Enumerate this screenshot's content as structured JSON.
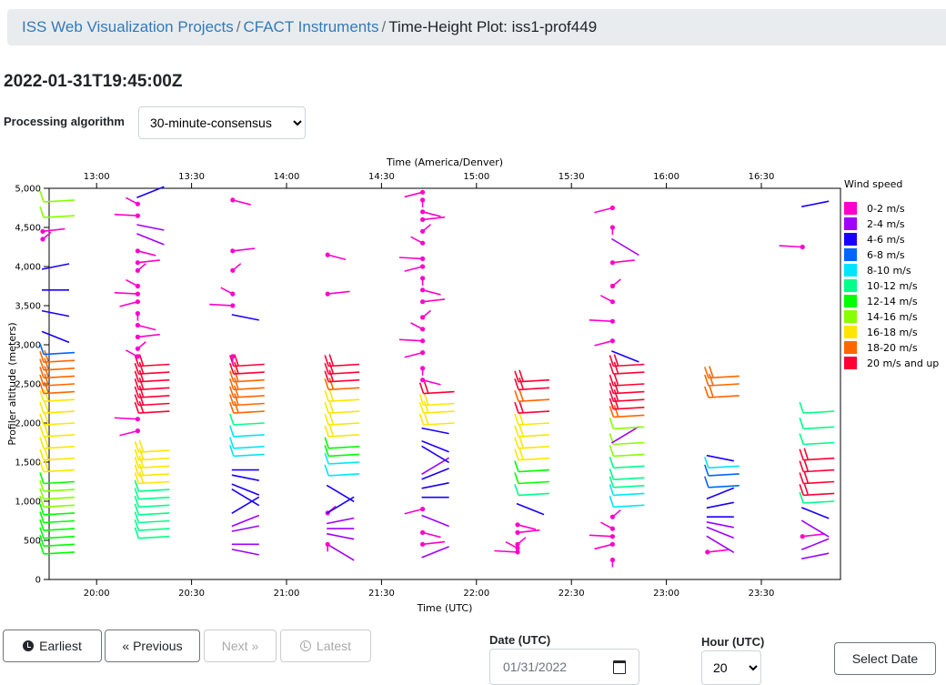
{
  "breadcrumb": {
    "items": [
      "ISS Web Visualization Projects",
      "CFACT Instruments"
    ],
    "separator": "/",
    "current": "Time-Height Plot: iss1-prof449"
  },
  "page_title": "2022-01-31T19:45:00Z",
  "algorithm": {
    "label": "Processing algorithm",
    "selected": "30-minute-consensus"
  },
  "nav": {
    "earliest": "Earliest",
    "previous": "« Previous",
    "next": "Next »",
    "latest": "Latest"
  },
  "date": {
    "label": "Date (UTC)",
    "value": "01/31/2022"
  },
  "hour": {
    "label": "Hour (UTC)",
    "selected": "20"
  },
  "select_date_label": "Select Date",
  "chart_data": {
    "type": "wind-barb time-height",
    "xlabel": "Time (UTC)",
    "x2label": "Time (America/Denver)",
    "ylabel": "Profiler altitude (meters)",
    "xticks": [
      "20:00",
      "20:30",
      "21:00",
      "21:30",
      "22:00",
      "22:30",
      "23:00",
      "23:30"
    ],
    "x2ticks": [
      "13:00",
      "13:30",
      "14:00",
      "14:30",
      "15:00",
      "15:30",
      "16:00",
      "16:30"
    ],
    "yticks": [
      "0",
      "500",
      "1,000",
      "1,500",
      "2,000",
      "2,500",
      "3,000",
      "3,500",
      "4,000",
      "4,500",
      "5,000"
    ],
    "ylim": [
      0,
      5000
    ],
    "legend": {
      "title": "Wind speed",
      "items": [
        {
          "label": "0-2 m/s",
          "color": "#ff00cc"
        },
        {
          "label": "2-4 m/s",
          "color": "#a000ff"
        },
        {
          "label": "4-6 m/s",
          "color": "#1a00ff"
        },
        {
          "label": "6-8 m/s",
          "color": "#0066ff"
        },
        {
          "label": "8-10 m/s",
          "color": "#00e5ff"
        },
        {
          "label": "10-12 m/s",
          "color": "#00ff88"
        },
        {
          "label": "12-14 m/s",
          "color": "#00ff00"
        },
        {
          "label": "14-16 m/s",
          "color": "#88ff00"
        },
        {
          "label": "16-18 m/s",
          "color": "#ffe600"
        },
        {
          "label": "18-20 m/s",
          "color": "#ff6600"
        },
        {
          "label": "20 m/s and up",
          "color": "#ff0033"
        }
      ]
    },
    "columns": [
      {
        "time": "19:45",
        "barbs": [
          [
            350,
            12
          ],
          [
            450,
            12
          ],
          [
            550,
            12
          ],
          [
            650,
            12
          ],
          [
            750,
            12
          ],
          [
            850,
            12
          ],
          [
            950,
            14
          ],
          [
            1050,
            14
          ],
          [
            1150,
            14
          ],
          [
            1250,
            12
          ],
          [
            1400,
            16
          ],
          [
            1550,
            16
          ],
          [
            1700,
            16
          ],
          [
            1850,
            16
          ],
          [
            2000,
            16
          ],
          [
            2150,
            16
          ],
          [
            2300,
            16
          ],
          [
            2400,
            18
          ],
          [
            2500,
            18
          ],
          [
            2600,
            18
          ],
          [
            2700,
            18
          ],
          [
            2800,
            18
          ],
          [
            2900,
            6
          ],
          [
            3100,
            4
          ],
          [
            3400,
            4
          ],
          [
            3700,
            4
          ],
          [
            4000,
            4
          ],
          [
            4350,
            0
          ],
          [
            4450,
            0
          ],
          [
            4650,
            14
          ],
          [
            4850,
            14
          ]
        ]
      },
      {
        "time": "20:15",
        "barbs": [
          [
            550,
            10
          ],
          [
            650,
            10
          ],
          [
            750,
            10
          ],
          [
            850,
            10
          ],
          [
            950,
            10
          ],
          [
            1050,
            10
          ],
          [
            1150,
            10
          ],
          [
            1250,
            16
          ],
          [
            1350,
            16
          ],
          [
            1450,
            16
          ],
          [
            1550,
            16
          ],
          [
            1650,
            16
          ],
          [
            1900,
            0
          ],
          [
            2050,
            0
          ],
          [
            2150,
            20
          ],
          [
            2250,
            20
          ],
          [
            2350,
            20
          ],
          [
            2450,
            20
          ],
          [
            2550,
            20
          ],
          [
            2650,
            20
          ],
          [
            2750,
            20
          ],
          [
            2850,
            0
          ],
          [
            2950,
            0
          ],
          [
            3100,
            0
          ],
          [
            3250,
            0
          ],
          [
            3400,
            0
          ],
          [
            3550,
            0
          ],
          [
            3650,
            0
          ],
          [
            3750,
            0
          ],
          [
            3950,
            0
          ],
          [
            4050,
            0
          ],
          [
            4200,
            0
          ],
          [
            4350,
            2
          ],
          [
            4500,
            2
          ],
          [
            4650,
            0
          ],
          [
            4800,
            0
          ],
          [
            4950,
            4
          ]
        ]
      },
      {
        "time": "20:45",
        "barbs": [
          [
            350,
            2
          ],
          [
            450,
            2
          ],
          [
            650,
            2
          ],
          [
            750,
            2
          ],
          [
            950,
            4
          ],
          [
            1050,
            4
          ],
          [
            1150,
            4
          ],
          [
            1300,
            4
          ],
          [
            1400,
            4
          ],
          [
            1600,
            8
          ],
          [
            1700,
            8
          ],
          [
            1850,
            8
          ],
          [
            2000,
            10
          ],
          [
            2150,
            18
          ],
          [
            2250,
            18
          ],
          [
            2350,
            18
          ],
          [
            2450,
            18
          ],
          [
            2550,
            18
          ],
          [
            2650,
            20
          ],
          [
            2750,
            20
          ],
          [
            2850,
            0
          ],
          [
            3350,
            4
          ],
          [
            3500,
            0
          ],
          [
            3650,
            0
          ],
          [
            3950,
            0
          ],
          [
            4200,
            0
          ],
          [
            4850,
            0
          ]
        ]
      },
      {
        "time": "21:15",
        "barbs": [
          [
            350,
            2
          ],
          [
            450,
            0
          ],
          [
            550,
            2
          ],
          [
            650,
            2
          ],
          [
            750,
            2
          ],
          [
            850,
            0
          ],
          [
            950,
            4
          ],
          [
            1100,
            4
          ],
          [
            1350,
            8
          ],
          [
            1500,
            8
          ],
          [
            1600,
            12
          ],
          [
            1700,
            12
          ],
          [
            1850,
            16
          ],
          [
            2000,
            16
          ],
          [
            2150,
            16
          ],
          [
            2300,
            16
          ],
          [
            2450,
            18
          ],
          [
            2550,
            20
          ],
          [
            2650,
            20
          ],
          [
            2750,
            20
          ],
          [
            3650,
            0
          ],
          [
            4150,
            0
          ]
        ]
      },
      {
        "time": "21:45",
        "barbs": [
          [
            350,
            2
          ],
          [
            450,
            0
          ],
          [
            600,
            0
          ],
          [
            750,
            2
          ],
          [
            900,
            0
          ],
          [
            1050,
            4
          ],
          [
            1200,
            4
          ],
          [
            1350,
            4
          ],
          [
            1450,
            2
          ],
          [
            1600,
            4
          ],
          [
            1700,
            4
          ],
          [
            1900,
            4
          ],
          [
            2000,
            16
          ],
          [
            2150,
            16
          ],
          [
            2250,
            16
          ],
          [
            2400,
            20
          ],
          [
            2550,
            0
          ],
          [
            2700,
            0
          ],
          [
            2900,
            0
          ],
          [
            3050,
            0
          ],
          [
            3200,
            0
          ],
          [
            3350,
            0
          ],
          [
            3550,
            0
          ],
          [
            3700,
            0
          ],
          [
            3850,
            0
          ],
          [
            4000,
            0
          ],
          [
            4100,
            0
          ],
          [
            4300,
            0
          ],
          [
            4450,
            0
          ],
          [
            4600,
            0
          ],
          [
            4700,
            0
          ],
          [
            4850,
            0
          ],
          [
            4950,
            0
          ]
        ]
      },
      {
        "time": "22:15",
        "barbs": [
          [
            350,
            0
          ],
          [
            400,
            0
          ],
          [
            450,
            0
          ],
          [
            600,
            0
          ],
          [
            700,
            0
          ],
          [
            900,
            4
          ],
          [
            1100,
            10
          ],
          [
            1250,
            12
          ],
          [
            1400,
            12
          ],
          [
            1550,
            16
          ],
          [
            1700,
            16
          ],
          [
            1850,
            16
          ],
          [
            2000,
            16
          ],
          [
            2150,
            20
          ],
          [
            2300,
            18
          ],
          [
            2450,
            20
          ],
          [
            2550,
            20
          ]
        ]
      },
      {
        "time": "22:45",
        "barbs": [
          [
            250,
            0
          ],
          [
            450,
            0
          ],
          [
            550,
            0
          ],
          [
            650,
            0
          ],
          [
            800,
            0
          ],
          [
            950,
            8
          ],
          [
            1100,
            8
          ],
          [
            1200,
            10
          ],
          [
            1300,
            10
          ],
          [
            1450,
            10
          ],
          [
            1600,
            14
          ],
          [
            1750,
            14
          ],
          [
            1850,
            2
          ],
          [
            1950,
            14
          ],
          [
            2100,
            18
          ],
          [
            2200,
            20
          ],
          [
            2300,
            20
          ],
          [
            2400,
            20
          ],
          [
            2500,
            20
          ],
          [
            2650,
            20
          ],
          [
            2750,
            20
          ],
          [
            2850,
            4
          ],
          [
            3050,
            0
          ],
          [
            3300,
            0
          ],
          [
            3550,
            0
          ],
          [
            3750,
            0
          ],
          [
            4050,
            0
          ],
          [
            4250,
            2
          ],
          [
            4500,
            0
          ],
          [
            4750,
            0
          ]
        ]
      },
      {
        "time": "23:15",
        "barbs": [
          [
            350,
            0
          ],
          [
            450,
            2
          ],
          [
            600,
            2
          ],
          [
            700,
            2
          ],
          [
            800,
            4
          ],
          [
            950,
            4
          ],
          [
            1100,
            4
          ],
          [
            1200,
            6
          ],
          [
            1350,
            6
          ],
          [
            1450,
            8
          ],
          [
            1550,
            4
          ],
          [
            2350,
            18
          ],
          [
            2500,
            18
          ],
          [
            2600,
            18
          ]
        ]
      },
      {
        "time": "23:45",
        "barbs": [
          [
            300,
            2
          ],
          [
            450,
            2
          ],
          [
            550,
            0
          ],
          [
            650,
            2
          ],
          [
            850,
            4
          ],
          [
            1000,
            10
          ],
          [
            1100,
            20
          ],
          [
            1250,
            20
          ],
          [
            1400,
            20
          ],
          [
            1550,
            20
          ],
          [
            1750,
            10
          ],
          [
            1950,
            10
          ],
          [
            2150,
            10
          ],
          [
            4250,
            0
          ],
          [
            4800,
            4
          ]
        ]
      }
    ]
  }
}
